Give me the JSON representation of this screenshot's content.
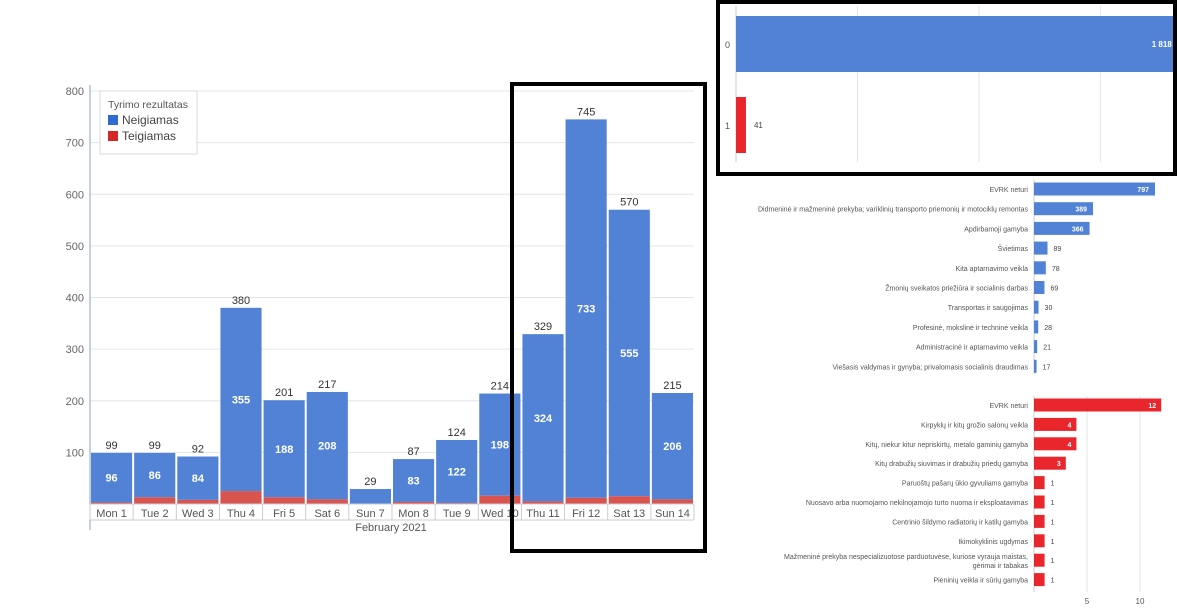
{
  "colors": {
    "negative": "#5282d6",
    "positive": "#d9534f",
    "red_bar": "#e8262b",
    "grid": "#e3e6ea",
    "axis": "#8aa0b8",
    "frame": "#000000"
  },
  "chart_data": [
    {
      "type": "bar",
      "stacked": true,
      "categories": [
        "Mon 1",
        "Tue 2",
        "Wed 3",
        "Thu 4",
        "Fri 5",
        "Sat 6",
        "Sun 7",
        "Mon 8",
        "Tue 9",
        "Wed 10",
        "Thu 11",
        "Fri 12",
        "Sat 13",
        "Sun 14"
      ],
      "series": [
        {
          "name": "Neigiamas",
          "values": [
            96,
            86,
            84,
            355,
            188,
            208,
            29,
            83,
            122,
            198,
            324,
            733,
            555,
            206
          ]
        },
        {
          "name": "Teigiamas",
          "values": [
            3,
            13,
            8,
            25,
            13,
            9,
            0,
            4,
            2,
            16,
            5,
            12,
            15,
            9
          ]
        }
      ],
      "totals": [
        99,
        99,
        92,
        380,
        201,
        217,
        29,
        87,
        124,
        214,
        329,
        745,
        570,
        215
      ],
      "inner_labels": [
        "96",
        "86",
        "84",
        "355",
        "188",
        "208",
        "",
        "83",
        "122",
        "198",
        "324",
        "733",
        "555",
        "206"
      ],
      "xlabel": "February 2021",
      "ylim": [
        0,
        800
      ],
      "yticks": [
        100,
        200,
        300,
        400,
        500,
        600,
        700,
        800
      ],
      "legend": {
        "title": "Tyrimo rezultatas",
        "position": "top-left"
      },
      "grid": true,
      "highlight": [
        "Thu 11",
        "Fri 12",
        "Sat 13",
        "Sun 14"
      ]
    },
    {
      "type": "bar",
      "orientation": "horizontal",
      "categories": [
        "0",
        "1"
      ],
      "values": [
        1818,
        41
      ],
      "value_labels": [
        "1 818",
        "41"
      ],
      "grid": true,
      "framed": true
    },
    {
      "type": "bar",
      "orientation": "horizontal",
      "categories": [
        "EVRK neturi",
        "Didmeninė ir mažmeninė prekyba; variklinių transporto priemonių ir motociklų remontas",
        "Apdirbamoji gamyba",
        "Švietimas",
        "Kita aptarnavimo veikla",
        "Žmonių sveikatos priežiūra ir socialinis darbas",
        "Transportas ir saugojimas",
        "Profesinė, mokslinė ir techninė veikla",
        "Administracinė ir aptarnavimo veikla",
        "Viešasis valdymas ir gynyba; privalomasis socialinis draudimas"
      ],
      "values": [
        797,
        389,
        366,
        89,
        78,
        69,
        30,
        28,
        21,
        17
      ],
      "grid": false
    },
    {
      "type": "bar",
      "orientation": "horizontal",
      "categories": [
        "EVRK neturi",
        "Kirpyklų ir kitų grožio salonų veikla",
        "Kitų, niekur kitur nepriskirtų, metalo gaminių gamyba",
        "Kitų drabužių siuvimas ir drabužių priedų gamyba",
        "Paruoštų pašarų ūkio gyvuliams gamyba",
        "Nuosavo arba nuomojamo nekilnojamojo turto nuoma ir eksploatavimas",
        "Centrinio šildymo radiatorių ir katilų gamyba",
        "Ikimokyklinis ugdymas",
        "Mažmeninė prekyba nespecializuotose parduotuvėse, kuriose vyrauja maistas, gėrimai ir tabakas",
        "Pieninių veikla ir sūrių gamyba"
      ],
      "values": [
        12,
        4,
        4,
        3,
        1,
        1,
        1,
        1,
        1,
        1
      ],
      "xticks": [
        "5",
        "10"
      ],
      "grid": true
    }
  ]
}
